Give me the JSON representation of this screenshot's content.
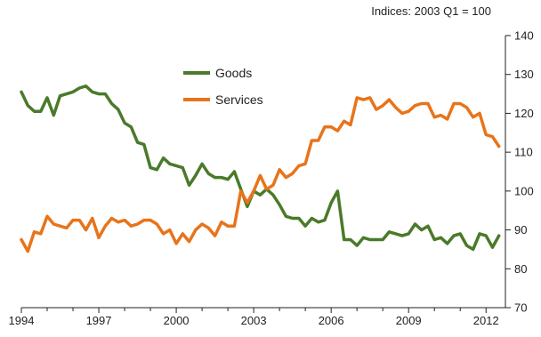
{
  "chart_data": {
    "type": "line",
    "units_note": "Indices: 2003 Q1 = 100",
    "xlabel": "",
    "ylabel": "",
    "xlim": [
      1994,
      2012.75
    ],
    "ylim": [
      70,
      140
    ],
    "y_axis_side": "right",
    "grid": false,
    "legend_position": "upper-center",
    "x_tick_labels": [
      "1994",
      "1997",
      "2000",
      "2003",
      "2006",
      "2009",
      "2012"
    ],
    "x_tick_values": [
      1994,
      1997,
      2000,
      2003,
      2006,
      2009,
      2012
    ],
    "y_tick_labels": [
      "70",
      "80",
      "90",
      "100",
      "110",
      "120",
      "130",
      "140"
    ],
    "y_tick_values": [
      70,
      80,
      90,
      100,
      110,
      120,
      130,
      140
    ],
    "series": [
      {
        "name": "Goods",
        "color": "#4a7a2a",
        "points": [
          [
            1994.0,
            125.5
          ],
          [
            1994.25,
            122.0
          ],
          [
            1994.5,
            120.5
          ],
          [
            1994.75,
            120.5
          ],
          [
            1995.0,
            124.0
          ],
          [
            1995.25,
            119.5
          ],
          [
            1995.5,
            124.5
          ],
          [
            1995.75,
            125.0
          ],
          [
            1996.0,
            125.5
          ],
          [
            1996.25,
            126.5
          ],
          [
            1996.5,
            127.0
          ],
          [
            1996.75,
            125.5
          ],
          [
            1997.0,
            125.0
          ],
          [
            1997.25,
            125.0
          ],
          [
            1997.5,
            122.5
          ],
          [
            1997.75,
            121.0
          ],
          [
            1998.0,
            117.5
          ],
          [
            1998.25,
            116.5
          ],
          [
            1998.5,
            112.5
          ],
          [
            1998.75,
            112.0
          ],
          [
            1999.0,
            106.0
          ],
          [
            1999.25,
            105.5
          ],
          [
            1999.5,
            108.5
          ],
          [
            1999.75,
            107.0
          ],
          [
            2000.0,
            106.5
          ],
          [
            2000.25,
            106.0
          ],
          [
            2000.5,
            101.5
          ],
          [
            2000.75,
            104.0
          ],
          [
            2001.0,
            107.0
          ],
          [
            2001.25,
            104.5
          ],
          [
            2001.5,
            103.5
          ],
          [
            2001.75,
            103.5
          ],
          [
            2002.0,
            103.0
          ],
          [
            2002.25,
            105.0
          ],
          [
            2002.5,
            100.5
          ],
          [
            2002.75,
            96.0
          ],
          [
            2003.0,
            100.0
          ],
          [
            2003.25,
            99.0
          ],
          [
            2003.5,
            100.5
          ],
          [
            2003.75,
            99.0
          ],
          [
            2004.0,
            96.5
          ],
          [
            2004.25,
            93.5
          ],
          [
            2004.5,
            93.0
          ],
          [
            2004.75,
            93.0
          ],
          [
            2005.0,
            91.0
          ],
          [
            2005.25,
            93.0
          ],
          [
            2005.5,
            92.0
          ],
          [
            2005.75,
            92.5
          ],
          [
            2006.0,
            97.0
          ],
          [
            2006.25,
            100.0
          ],
          [
            2006.5,
            87.5
          ],
          [
            2006.75,
            87.5
          ],
          [
            2007.0,
            86.0
          ],
          [
            2007.25,
            88.0
          ],
          [
            2007.5,
            87.5
          ],
          [
            2007.75,
            87.5
          ],
          [
            2008.0,
            87.5
          ],
          [
            2008.25,
            89.5
          ],
          [
            2008.5,
            89.0
          ],
          [
            2008.75,
            88.5
          ],
          [
            2009.0,
            89.0
          ],
          [
            2009.25,
            91.5
          ],
          [
            2009.5,
            90.0
          ],
          [
            2009.75,
            91.0
          ],
          [
            2010.0,
            87.5
          ],
          [
            2010.25,
            88.0
          ],
          [
            2010.5,
            86.5
          ],
          [
            2010.75,
            88.5
          ],
          [
            2011.0,
            89.0
          ],
          [
            2011.25,
            86.0
          ],
          [
            2011.5,
            85.0
          ],
          [
            2011.75,
            89.0
          ],
          [
            2012.0,
            88.5
          ],
          [
            2012.25,
            85.5
          ],
          [
            2012.5,
            88.5
          ]
        ]
      },
      {
        "name": "Services",
        "color": "#e8741a",
        "points": [
          [
            1994.0,
            87.5
          ],
          [
            1994.25,
            84.5
          ],
          [
            1994.5,
            89.5
          ],
          [
            1994.75,
            89.0
          ],
          [
            1995.0,
            93.5
          ],
          [
            1995.25,
            91.5
          ],
          [
            1995.5,
            91.0
          ],
          [
            1995.75,
            90.5
          ],
          [
            1996.0,
            92.5
          ],
          [
            1996.25,
            92.5
          ],
          [
            1996.5,
            90.0
          ],
          [
            1996.75,
            93.0
          ],
          [
            1997.0,
            88.0
          ],
          [
            1997.25,
            91.0
          ],
          [
            1997.5,
            93.0
          ],
          [
            1997.75,
            92.0
          ],
          [
            1998.0,
            92.5
          ],
          [
            1998.25,
            91.0
          ],
          [
            1998.5,
            91.5
          ],
          [
            1998.75,
            92.5
          ],
          [
            1999.0,
            92.5
          ],
          [
            1999.25,
            91.5
          ],
          [
            1999.5,
            89.0
          ],
          [
            1999.75,
            90.0
          ],
          [
            2000.0,
            86.5
          ],
          [
            2000.25,
            89.0
          ],
          [
            2000.5,
            87.0
          ],
          [
            2000.75,
            90.0
          ],
          [
            2001.0,
            91.5
          ],
          [
            2001.25,
            90.5
          ],
          [
            2001.5,
            88.5
          ],
          [
            2001.75,
            92.0
          ],
          [
            2002.0,
            91.0
          ],
          [
            2002.25,
            91.0
          ],
          [
            2002.5,
            100.0
          ],
          [
            2002.75,
            97.0
          ],
          [
            2003.0,
            100.0
          ],
          [
            2003.25,
            104.0
          ],
          [
            2003.5,
            100.5
          ],
          [
            2003.75,
            101.5
          ],
          [
            2004.0,
            105.5
          ],
          [
            2004.25,
            103.5
          ],
          [
            2004.5,
            104.5
          ],
          [
            2004.75,
            106.5
          ],
          [
            2005.0,
            107.0
          ],
          [
            2005.25,
            113.0
          ],
          [
            2005.5,
            113.0
          ],
          [
            2005.75,
            116.5
          ],
          [
            2006.0,
            116.5
          ],
          [
            2006.25,
            115.5
          ],
          [
            2006.5,
            118.0
          ],
          [
            2006.75,
            117.0
          ],
          [
            2007.0,
            124.0
          ],
          [
            2007.25,
            123.5
          ],
          [
            2007.5,
            124.0
          ],
          [
            2007.75,
            121.0
          ],
          [
            2008.0,
            122.0
          ],
          [
            2008.25,
            123.5
          ],
          [
            2008.5,
            121.5
          ],
          [
            2008.75,
            120.0
          ],
          [
            2009.0,
            120.5
          ],
          [
            2009.25,
            122.0
          ],
          [
            2009.5,
            122.5
          ],
          [
            2009.75,
            122.5
          ],
          [
            2010.0,
            119.0
          ],
          [
            2010.25,
            119.5
          ],
          [
            2010.5,
            118.5
          ],
          [
            2010.75,
            122.5
          ],
          [
            2011.0,
            122.5
          ],
          [
            2011.25,
            121.5
          ],
          [
            2011.5,
            119.0
          ],
          [
            2011.75,
            120.0
          ],
          [
            2012.0,
            114.5
          ],
          [
            2012.25,
            114.0
          ],
          [
            2012.5,
            111.5
          ]
        ]
      }
    ]
  }
}
